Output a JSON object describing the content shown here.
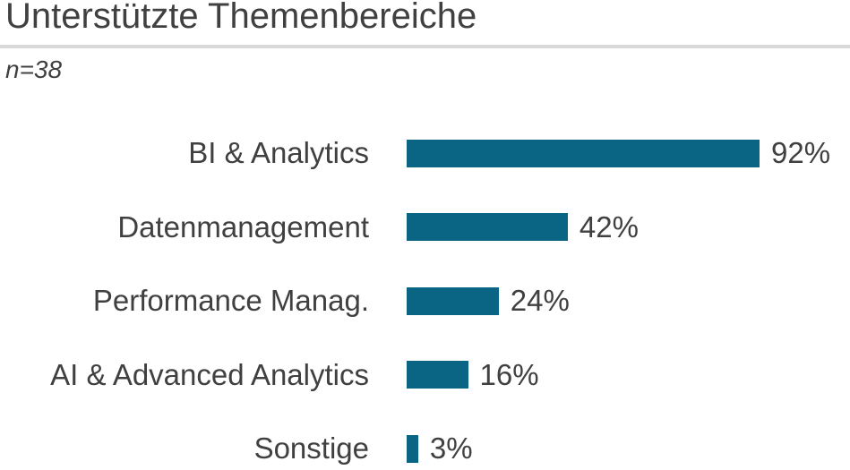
{
  "title": "Unterstützte Themenbereiche",
  "subtitle": "n=38",
  "colors": {
    "bar": "#0a6484",
    "text": "#404040",
    "divider": "#d9d9d9",
    "background": "#ffffff"
  },
  "chart_data": {
    "type": "bar",
    "orientation": "horizontal",
    "title": "Unterstützte Themenbereiche",
    "subtitle": "n=38",
    "categories": [
      "BI & Analytics",
      "Datenmanagement",
      "Performance Manag.",
      "AI & Advanced Analytics",
      "Sonstige"
    ],
    "values": [
      92,
      42,
      24,
      16,
      3
    ],
    "value_labels": [
      "92%",
      "42%",
      "24%",
      "16%",
      "3%"
    ],
    "value_suffix": "%",
    "xlim": [
      0,
      100
    ],
    "grid": false,
    "legend": false,
    "axis_ticks": false,
    "value_label_position": "end-of-bar"
  }
}
